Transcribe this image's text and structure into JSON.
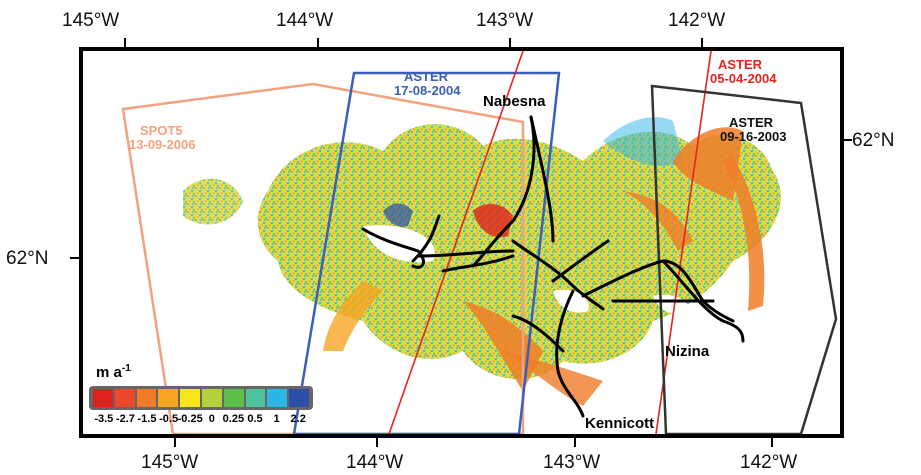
{
  "map": {
    "top_longitude_ticks": [
      "145°W",
      "144°W",
      "143°W",
      "142°W"
    ],
    "bottom_longitude_ticks": [
      "145°W",
      "144°W",
      "143°W",
      "142°W"
    ],
    "left_latitude_tick": "62°N",
    "right_latitude_tick": "62°N",
    "scenes": [
      {
        "sensor": "SPOT5",
        "date": "13-09-2006",
        "color": "#f4a27e"
      },
      {
        "sensor": "ASTER",
        "date": "17-08-2004",
        "color": "#3a5fb8"
      },
      {
        "sensor": "ASTER",
        "date": "05-04-2004",
        "color": "#e8231d"
      },
      {
        "sensor": "ASTER",
        "date": "09-16-2003",
        "color": "#333333"
      }
    ],
    "glacier_labels": [
      "Nabesna",
      "Nizina",
      "Kennicott"
    ],
    "legend": {
      "title": "m a",
      "title_superscript": "-1",
      "colors": [
        "#e0201f",
        "#ea4a2a",
        "#f07c28",
        "#f6a524",
        "#f6e61a",
        "#b4d23c",
        "#5cbf4a",
        "#4ec29a",
        "#2fb4e6",
        "#2b4fa6"
      ],
      "tick_labels": [
        "-3.5",
        "-2.7",
        "-1.5",
        "-0.5",
        "-0.25",
        "0",
        "0.25",
        "0.5",
        "1",
        "2.2"
      ]
    }
  }
}
